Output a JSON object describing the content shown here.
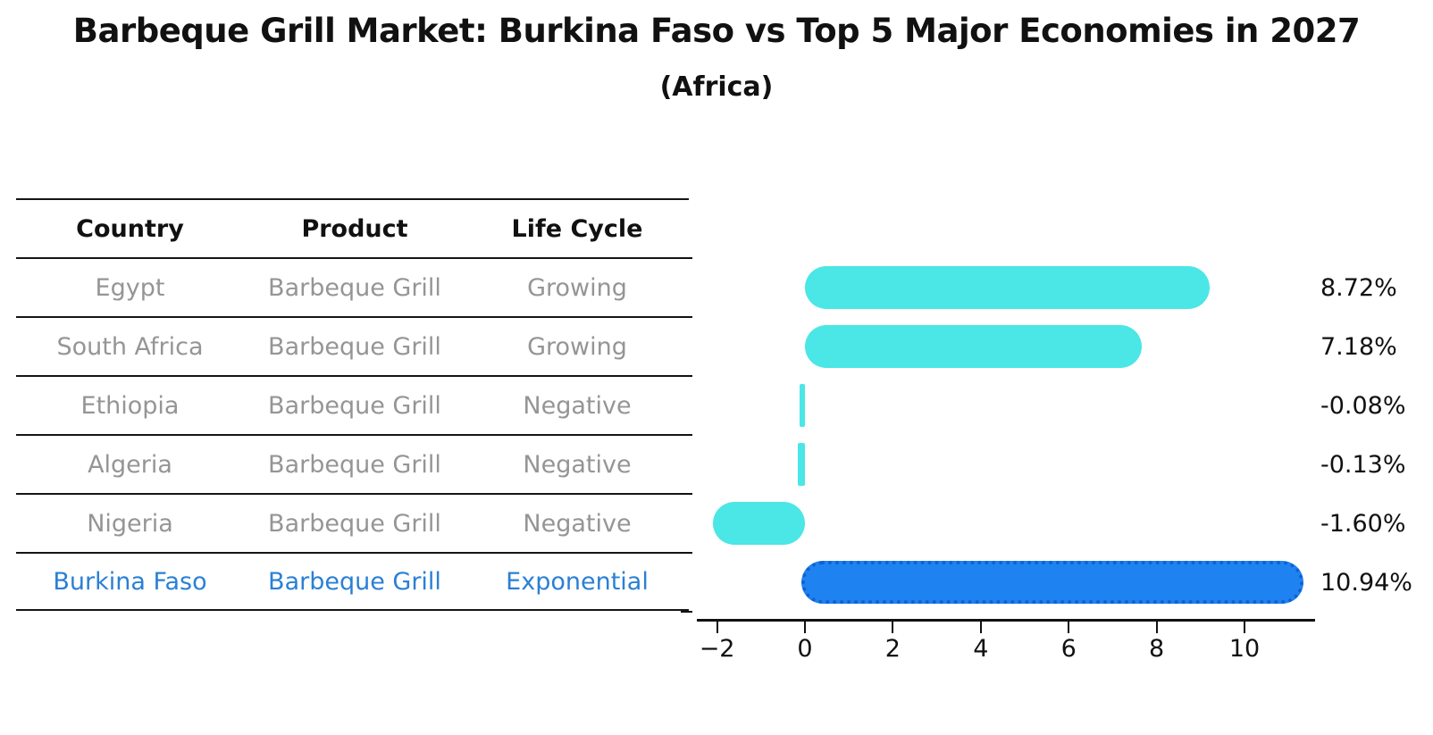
{
  "title": "Barbeque Grill Market: Burkina Faso vs Top 5 Major Economies in 2027",
  "subtitle": "(Africa)",
  "table": {
    "headers": [
      "Country",
      "Product",
      "Life Cycle"
    ],
    "text_color": "#959595",
    "highlight_text_color": "#2A80D5",
    "rows": [
      {
        "country": "Egypt",
        "product": "Barbeque Grill",
        "life_cycle": "Growing",
        "highlight": false
      },
      {
        "country": "South Africa",
        "product": "Barbeque Grill",
        "life_cycle": "Growing",
        "highlight": false
      },
      {
        "country": "Ethiopia",
        "product": "Barbeque Grill",
        "life_cycle": "Negative",
        "highlight": false
      },
      {
        "country": "Algeria",
        "product": "Barbeque Grill",
        "life_cycle": "Negative",
        "highlight": false
      },
      {
        "country": "Nigeria",
        "product": "Barbeque Grill",
        "life_cycle": "Negative",
        "highlight": false
      },
      {
        "country": "Burkina Faso",
        "product": "Barbeque Grill",
        "life_cycle": "Exponential",
        "highlight": true
      }
    ]
  },
  "chart_data": {
    "type": "bar",
    "orientation": "horizontal",
    "title": "Barbeque Grill Market: Burkina Faso vs Top 5 Major Economies in 2027",
    "subtitle": "(Africa)",
    "categories": [
      "Egypt",
      "South Africa",
      "Ethiopia",
      "Algeria",
      "Nigeria",
      "Burkina Faso"
    ],
    "values": [
      8.72,
      7.18,
      -0.08,
      -0.13,
      -1.6,
      10.94
    ],
    "value_labels": [
      "8.72%",
      "7.18%",
      "-0.08%",
      "-0.13%",
      "-1.60%",
      "10.94%"
    ],
    "xlabel": "",
    "ylabel": "",
    "xlim": [
      -2.4,
      11.6
    ],
    "xticks": [
      -2,
      0,
      2,
      4,
      6,
      8,
      10
    ],
    "xtick_labels": [
      "−2",
      "0",
      "2",
      "4",
      "6",
      "8",
      "10"
    ],
    "grid": false,
    "legend": false,
    "bar_color": "#4BE6E6",
    "highlight_index": 5,
    "highlight_color": "#1E82F0",
    "highlight_border_color": "#1161D2",
    "axis_color": "#111111"
  }
}
